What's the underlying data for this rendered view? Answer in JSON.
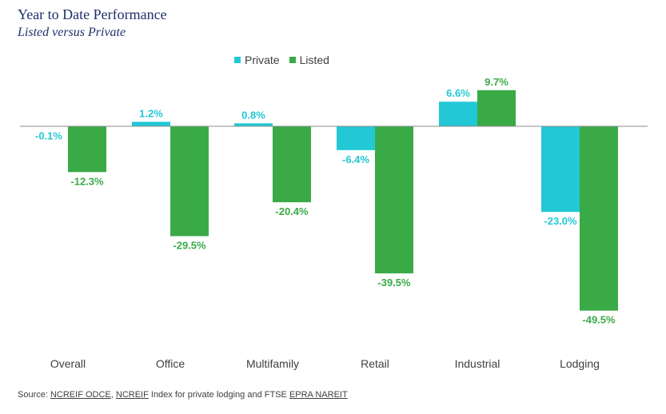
{
  "title": "Year to Date Performance",
  "subtitle": "Listed versus Private",
  "source": {
    "prefix": "Source: ",
    "link1": "NCREIF ODCE",
    "sep1": ", ",
    "link2": "NCREIF",
    "mid": " Index for private lodging and FTSE ",
    "link3": "EPRA NAREIT"
  },
  "colors": {
    "private": "#22c8d6",
    "listed": "#3aaa47",
    "axis": "#8c8c8c",
    "category_text": "#404040"
  },
  "chart_data": {
    "type": "bar",
    "categories": [
      "Overall",
      "Office",
      "Multifamily",
      "Retail",
      "Industrial",
      "Lodging"
    ],
    "series": [
      {
        "name": "Private",
        "values": [
          -0.1,
          1.2,
          0.8,
          -6.4,
          6.6,
          -23.0
        ],
        "labels": [
          "-0.1%",
          "1.2%",
          "0.8%",
          "-6.4%",
          "6.6%",
          "-23.0%"
        ]
      },
      {
        "name": "Listed",
        "values": [
          -12.3,
          -29.5,
          -20.4,
          -39.5,
          9.7,
          -49.5
        ],
        "labels": [
          "-12.3%",
          "-29.5%",
          "-20.4%",
          "-39.5%",
          "9.7%",
          "-49.5%"
        ]
      }
    ],
    "title": "Year to Date Performance",
    "subtitle": "Listed versus Private",
    "legend_position": "top-center",
    "grid": false
  }
}
